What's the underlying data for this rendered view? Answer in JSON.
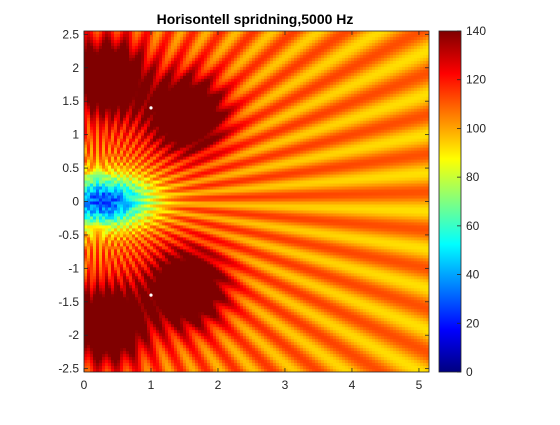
{
  "chart_data": {
    "type": "heatmap",
    "title": "Horisontell spridning,5000 Hz",
    "xlabel": "",
    "ylabel": "",
    "xlim": [
      0,
      5.15
    ],
    "ylim": [
      2.55,
      -2.55
    ],
    "x_ticks": [
      0,
      1,
      2,
      3,
      4,
      5
    ],
    "x_tick_labels": [
      "0",
      "1",
      "2",
      "3",
      "4",
      "5"
    ],
    "y_ticks": [
      -2.5,
      -2,
      -1.5,
      -1,
      -0.5,
      0,
      0.5,
      1,
      1.5,
      2,
      2.5
    ],
    "y_tick_labels": [
      "-2.5",
      "-2",
      "-1.5",
      "-1",
      "-0.5",
      "0",
      "0.5",
      "1",
      "1.5",
      "2",
      "2.5"
    ],
    "colorbar": {
      "colormap": "jet",
      "clim": [
        0,
        140
      ],
      "ticks": [
        0,
        20,
        40,
        60,
        80,
        100,
        120,
        140
      ],
      "tick_labels": [
        "0",
        "20",
        "40",
        "60",
        "80",
        "100",
        "120",
        "140"
      ]
    },
    "sources": [
      {
        "x": 1.0,
        "y": -1.4
      },
      {
        "x": 1.0,
        "y": 1.4
      }
    ],
    "high_lobes": [
      {
        "x": 0.35,
        "y": -1.85,
        "value": 140
      },
      {
        "x": 1.55,
        "y": -1.3,
        "value": 140
      },
      {
        "x": 0.35,
        "y": 1.85,
        "value": 140
      },
      {
        "x": 1.55,
        "y": 1.3,
        "value": 140
      }
    ],
    "low_region": {
      "x": 0.3,
      "y": 0,
      "value": 10
    },
    "far_field_value": 100,
    "grid": false
  }
}
